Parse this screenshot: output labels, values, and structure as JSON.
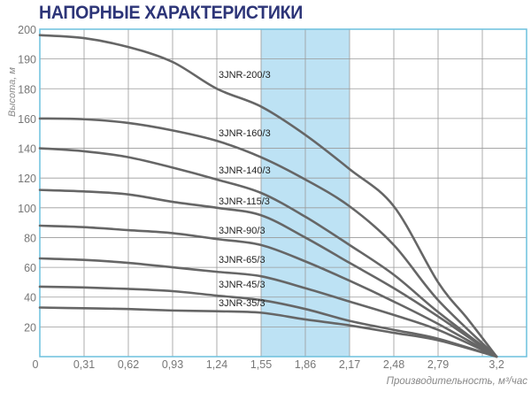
{
  "chart_data": {
    "type": "line",
    "title": "НАПОРНЫЕ ХАРАКТЕРИСТИКИ",
    "xlabel": "Производительность, м³/час",
    "ylabel": "Высота, м",
    "x_ticks": [
      "0",
      "0,31",
      "0,62",
      "0,93",
      "1,24",
      "1,55",
      "1,86",
      "2,17",
      "2,48",
      "2,79",
      "3,2"
    ],
    "x_tick_values": [
      0,
      0.31,
      0.62,
      0.93,
      1.24,
      1.55,
      1.86,
      2.17,
      2.48,
      2.79,
      3.2
    ],
    "y_ticks": [
      200,
      190,
      180,
      160,
      140,
      120,
      100,
      80,
      60,
      40,
      20
    ],
    "y_scale_note_values": [
      200,
      190,
      180,
      160,
      140,
      120,
      100,
      80,
      60,
      40,
      20,
      0
    ],
    "xlim": [
      0,
      3.51
    ],
    "ylim": [
      0,
      200
    ],
    "grid": true,
    "highlight_band": {
      "x_from": 1.55,
      "x_to": 2.17,
      "color": "#bde2f4"
    },
    "colors": {
      "curve": "#666666",
      "frame": "#6cc0dd",
      "grid": "#9a9a9a",
      "title": "#2d3578"
    },
    "series": [
      {
        "name": "3JNR-200/3",
        "x": [
          0,
          0.31,
          0.62,
          0.93,
          1.24,
          1.55,
          1.86,
          2.17,
          2.48,
          2.79,
          3.0,
          3.2
        ],
        "y": [
          198,
          197,
          194,
          189,
          180,
          168,
          149,
          126,
          101,
          50,
          25,
          0
        ]
      },
      {
        "name": "3JNR-160/3",
        "x": [
          0,
          0.31,
          0.62,
          0.93,
          1.24,
          1.55,
          1.86,
          2.17,
          2.48,
          2.79,
          3.2
        ],
        "y": [
          160,
          159.5,
          157,
          152,
          145,
          134,
          119,
          101,
          75,
          38,
          0
        ]
      },
      {
        "name": "3JNR-140/3",
        "x": [
          0,
          0.31,
          0.62,
          0.93,
          1.24,
          1.55,
          1.86,
          2.17,
          2.48,
          2.79,
          3.2
        ],
        "y": [
          140,
          138,
          134,
          127,
          119,
          110,
          94,
          75,
          55,
          30,
          0
        ]
      },
      {
        "name": "3JNR-115/3",
        "x": [
          0,
          0.31,
          0.62,
          0.93,
          1.24,
          1.55,
          1.86,
          2.17,
          2.48,
          2.79,
          3.2
        ],
        "y": [
          112,
          111,
          109,
          104,
          100,
          95,
          80,
          63,
          46,
          27,
          0
        ]
      },
      {
        "name": "3JNR-90/3",
        "x": [
          0,
          0.31,
          0.62,
          0.93,
          1.24,
          1.55,
          1.86,
          2.17,
          2.48,
          2.79,
          3.2
        ],
        "y": [
          88,
          87,
          85,
          83,
          79,
          75,
          64,
          51,
          37,
          22,
          0
        ]
      },
      {
        "name": "3JNR-65/3",
        "x": [
          0,
          0.31,
          0.62,
          0.93,
          1.24,
          1.55,
          1.86,
          2.17,
          2.48,
          2.79,
          3.2
        ],
        "y": [
          66,
          65,
          63,
          60,
          57,
          54,
          46,
          37,
          28,
          18,
          0
        ]
      },
      {
        "name": "3JNR-45/3",
        "x": [
          0,
          0.31,
          0.62,
          0.93,
          1.24,
          1.55,
          1.86,
          2.17,
          2.48,
          2.79,
          3.2
        ],
        "y": [
          47,
          46.5,
          45.5,
          44,
          41,
          38,
          32,
          24,
          18,
          12,
          0
        ]
      },
      {
        "name": "3JNR-35/3",
        "x": [
          0,
          0.31,
          0.62,
          0.93,
          1.24,
          1.55,
          1.86,
          2.17,
          2.48,
          2.79,
          3.2
        ],
        "y": [
          33,
          32.5,
          32,
          31,
          30.5,
          29.5,
          25,
          21,
          16,
          11,
          0
        ]
      }
    ]
  }
}
